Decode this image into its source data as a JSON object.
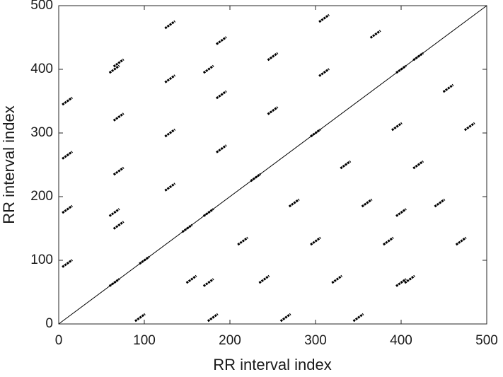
{
  "chart_data": {
    "type": "scatter",
    "xlabel": "RR interval index",
    "ylabel": "RR interval index",
    "color": "#000000",
    "x": [
      10,
      70,
      130,
      190,
      250,
      310,
      370,
      10,
      70,
      130,
      190,
      250,
      310,
      10,
      70,
      130,
      190,
      10,
      70,
      130,
      95,
      155,
      215,
      275,
      335,
      395,
      455,
      180,
      240,
      300,
      360,
      420,
      480,
      265,
      325,
      385,
      445,
      350,
      410,
      470,
      65,
      150,
      175,
      400,
      65,
      175,
      400,
      400,
      65,
      175,
      420,
      300,
      230,
      100
    ],
    "y": [
      95,
      155,
      215,
      275,
      335,
      395,
      455,
      180,
      240,
      300,
      360,
      420,
      480,
      265,
      325,
      385,
      445,
      350,
      410,
      470,
      10,
      70,
      130,
      190,
      250,
      310,
      370,
      10,
      70,
      130,
      190,
      250,
      310,
      10,
      70,
      130,
      190,
      10,
      70,
      130,
      65,
      150,
      175,
      400,
      400,
      400,
      65,
      175,
      175,
      65,
      420,
      300,
      230,
      100
    ],
    "diagonal": {
      "x": [
        0,
        500
      ],
      "y": [
        0,
        500
      ]
    },
    "xlim": [
      0,
      500
    ],
    "ylim": [
      0,
      500
    ],
    "xticks": [
      0,
      100,
      200,
      300,
      400,
      500
    ],
    "yticks": [
      0,
      100,
      200,
      300,
      400,
      500
    ]
  }
}
